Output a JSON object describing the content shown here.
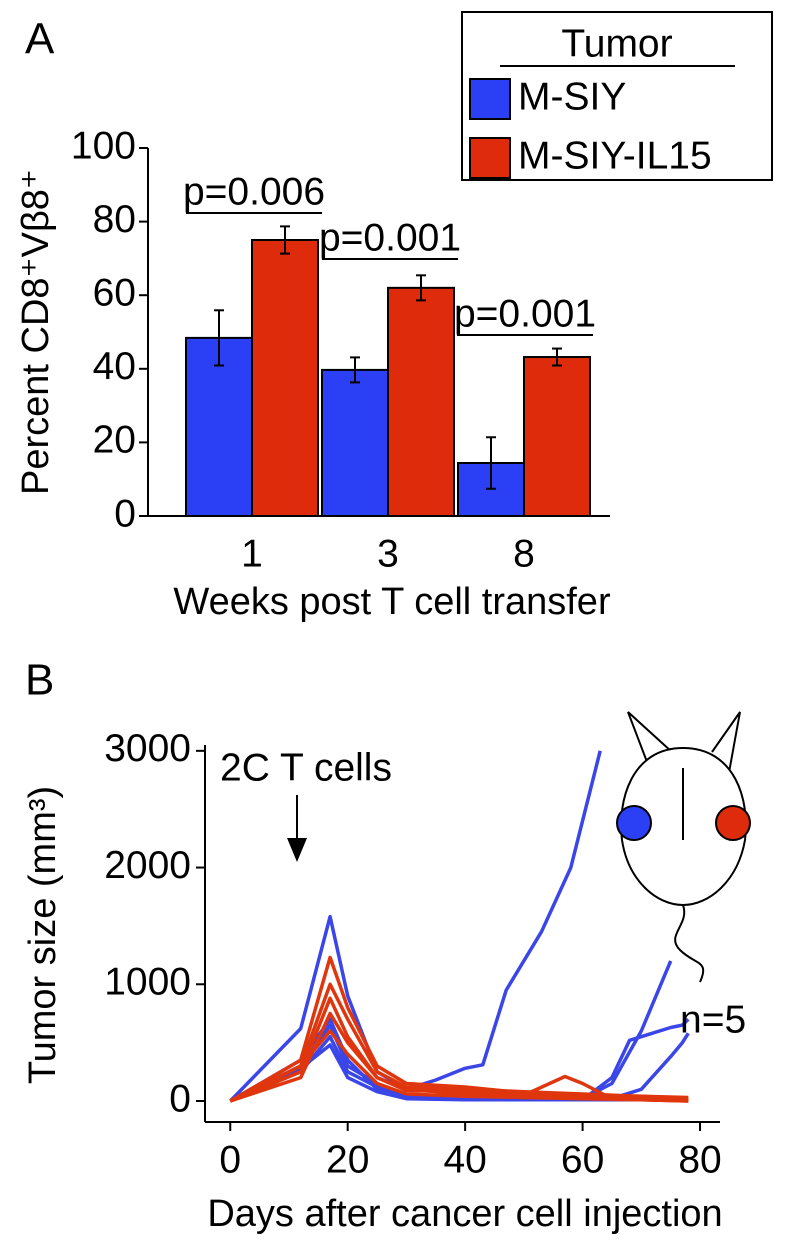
{
  "chart_data": [
    {
      "type": "bar",
      "panel_label": "A",
      "y_label": "Percent CD8⁺Vβ8⁺",
      "x_label": "Weeks post T cell transfer",
      "categories": [
        "1",
        "3",
        "8"
      ],
      "series": [
        {
          "name": "M-SIY",
          "color": "#2b3ff5",
          "values": [
            48.4,
            39.7,
            14.4
          ],
          "errors": [
            7.5,
            3.4,
            7
          ]
        },
        {
          "name": "M-SIY-IL15",
          "color": "#de2b0b",
          "values": [
            75,
            62,
            43.2
          ],
          "errors": [
            3.7,
            3.4,
            2.3
          ]
        }
      ],
      "legend_title": "Tumor",
      "legend": "upper right",
      "annotations": [
        "p=0.006",
        "p=0.001",
        "p=0.001"
      ],
      "ylim": [
        0,
        100
      ],
      "yticks": [
        0,
        20,
        40,
        60,
        80,
        100
      ]
    },
    {
      "type": "line",
      "panel_label": "B",
      "y_label": "Tumor size (mm³)",
      "x_label": "Days after cancer cell injection",
      "annotations": [
        "2C T cells",
        "n=5"
      ],
      "xlim": [
        -4.3,
        83.4
      ],
      "xticks": [
        0,
        20,
        40,
        60,
        80
      ],
      "ylim": [
        -180,
        3050
      ],
      "yticks": [
        0,
        1000,
        2000,
        3000
      ],
      "series": [
        {
          "color": "#3b46e8",
          "x": [
            0,
            12,
            17,
            20,
            25,
            30,
            35,
            40,
            43,
            47,
            53,
            58,
            63
          ],
          "values": [
            0,
            620,
            1580,
            900,
            250,
            100,
            180,
            280,
            310,
            950,
            1450,
            2000,
            3000
          ]
        },
        {
          "color": "#3b46e8",
          "x": [
            0,
            12,
            17,
            20,
            25,
            30,
            40,
            50,
            60,
            65,
            70,
            75
          ],
          "values": [
            0,
            300,
            650,
            300,
            150,
            50,
            30,
            20,
            20,
            150,
            600,
            1200
          ]
        },
        {
          "color": "#3b46e8",
          "x": [
            0,
            12,
            17,
            20,
            25,
            30,
            40,
            50,
            60,
            65,
            68,
            75,
            77,
            78
          ],
          "values": [
            0,
            250,
            550,
            250,
            120,
            40,
            20,
            10,
            10,
            200,
            520,
            630,
            650,
            700
          ]
        },
        {
          "color": "#3b46e8",
          "x": [
            0,
            12,
            17,
            20,
            25,
            30,
            40,
            50,
            60,
            65,
            70,
            75,
            77,
            78
          ],
          "values": [
            0,
            280,
            480,
            200,
            80,
            20,
            10,
            10,
            10,
            20,
            100,
            380,
            500,
            580
          ]
        },
        {
          "color": "#3b46e8",
          "x": [
            0,
            12,
            17,
            20,
            25,
            30,
            40,
            50,
            60,
            70,
            78
          ],
          "values": [
            0,
            350,
            700,
            350,
            100,
            30,
            20,
            10,
            10,
            10,
            10
          ]
        },
        {
          "color": "#e0360e",
          "x": [
            0,
            12,
            17,
            20,
            25,
            30,
            40,
            50,
            60,
            70,
            78
          ],
          "values": [
            0,
            350,
            1230,
            800,
            300,
            150,
            120,
            70,
            50,
            40,
            30
          ]
        },
        {
          "color": "#e0360e",
          "x": [
            0,
            12,
            17,
            20,
            25,
            30,
            40,
            50,
            60,
            70,
            78
          ],
          "values": [
            0,
            300,
            1000,
            700,
            250,
            120,
            100,
            80,
            60,
            40,
            20
          ]
        },
        {
          "color": "#e0360e",
          "x": [
            0,
            12,
            17,
            20,
            25,
            30,
            40,
            50,
            57,
            60,
            65,
            70,
            78
          ],
          "values": [
            0,
            250,
            880,
            550,
            200,
            100,
            60,
            50,
            210,
            150,
            20,
            10,
            0
          ]
        },
        {
          "color": "#e0360e",
          "x": [
            0,
            12,
            17,
            20,
            25,
            30,
            40,
            50,
            60,
            70,
            78
          ],
          "values": [
            0,
            200,
            750,
            500,
            200,
            90,
            80,
            50,
            30,
            20,
            10
          ]
        },
        {
          "color": "#e0360e",
          "x": [
            0,
            12,
            17,
            20,
            25,
            30,
            40,
            50,
            60,
            70,
            78
          ],
          "values": [
            0,
            300,
            600,
            400,
            150,
            60,
            40,
            30,
            20,
            10,
            0
          ]
        }
      ]
    }
  ]
}
